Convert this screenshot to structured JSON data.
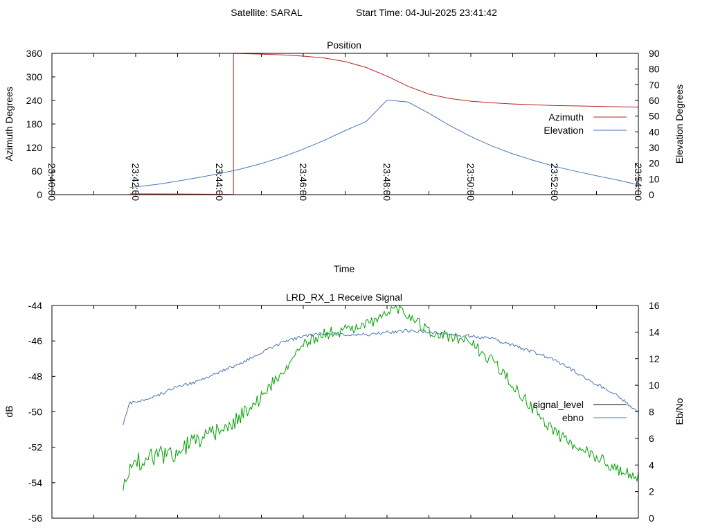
{
  "header": {
    "satellite_label": "Satellite: SARAL",
    "start_time_label": "Start Time: 04-Jul-2025 23:41:42"
  },
  "chart_data": [
    {
      "type": "line",
      "title": "Position",
      "xlabel": "Time",
      "ylabel": "Azimuth Degrees",
      "y2label": "Elevation Degrees",
      "xlim": [
        "23:40:00",
        "23:54:00"
      ],
      "x_ticks": [
        "23:40:00",
        "23:42:00",
        "23:44:00",
        "23:46:00",
        "23:48:00",
        "23:50:00",
        "23:52:00",
        "23:54:00"
      ],
      "ylim": [
        0,
        360
      ],
      "y_ticks": [
        "0",
        "60",
        "120",
        "180",
        "240",
        "300",
        "360"
      ],
      "y2lim": [
        0,
        90
      ],
      "y2_ticks": [
        "0",
        "10",
        "20",
        "30",
        "40",
        "50",
        "60",
        "70",
        "80",
        "90"
      ],
      "legend_position": "right",
      "grid": false,
      "series": [
        {
          "name": "Azimuth",
          "axis": "left",
          "color": "#b22222",
          "x": [
            "23:41:52",
            "23:42:30",
            "23:43:00",
            "23:43:30",
            "23:44:00",
            "23:44:20",
            "23:44:20",
            "23:44:30",
            "23:45:00",
            "23:45:30",
            "23:46:00",
            "23:46:30",
            "23:47:00",
            "23:47:30",
            "23:48:00",
            "23:48:30",
            "23:49:00",
            "23:49:30",
            "23:50:00",
            "23:50:30",
            "23:51:00",
            "23:51:30",
            "23:52:00",
            "23:52:30",
            "23:53:00",
            "23:53:30",
            "23:54:00"
          ],
          "values": [
            2,
            1.8,
            1.5,
            1.2,
            0.8,
            0.3,
            359.8,
            359.5,
            358,
            356,
            353,
            348,
            339,
            324,
            302,
            276,
            256,
            245,
            238,
            234,
            231,
            229,
            227,
            226,
            225,
            224,
            223
          ]
        },
        {
          "name": "Elevation",
          "axis": "right",
          "color": "#4a74b4",
          "x": [
            "23:41:52",
            "23:42:30",
            "23:43:00",
            "23:43:30",
            "23:44:00",
            "23:44:30",
            "23:45:00",
            "23:45:30",
            "23:46:00",
            "23:46:30",
            "23:47:00",
            "23:47:30",
            "23:48:00",
            "23:48:30",
            "23:49:00",
            "23:49:30",
            "23:50:00",
            "23:50:30",
            "23:51:00",
            "23:51:30",
            "23:52:00",
            "23:52:30",
            "23:53:00",
            "23:53:30",
            "23:54:00"
          ],
          "values": [
            4.5,
            6.5,
            8.6,
            10.9,
            13.4,
            16.3,
            19.8,
            24,
            29,
            34.6,
            40.8,
            46.6,
            60.2,
            59,
            51.8,
            44,
            37,
            31,
            26,
            21.8,
            18,
            14.9,
            12,
            9.3,
            6.2
          ]
        }
      ]
    },
    {
      "type": "line",
      "title": "LRD_RX_1 Receive Signal",
      "xlabel": "",
      "ylabel": "dB",
      "y2label": "Eb/No",
      "xlim": [
        "23:40:00",
        "23:54:00"
      ],
      "ylim": [
        -56,
        -44
      ],
      "y_ticks": [
        "-56",
        "-54",
        "-52",
        "-50",
        "-48",
        "-46",
        "-44"
      ],
      "y2lim": [
        0,
        16
      ],
      "y2_ticks": [
        "0",
        "2",
        "4",
        "6",
        "8",
        "10",
        "12",
        "14",
        "16"
      ],
      "legend_position": "right",
      "grid": false,
      "series": [
        {
          "name": "signal_level",
          "axis": "left",
          "color": "#000000",
          "x": [],
          "values": []
        },
        {
          "name": "ebno",
          "axis": "right",
          "color": "#4a74b4",
          "x": [
            "23:41:42",
            "23:41:50",
            "23:42:30",
            "23:43:00",
            "23:43:30",
            "23:44:00",
            "23:44:30",
            "23:45:00",
            "23:45:30",
            "23:46:00",
            "23:46:30",
            "23:47:00",
            "23:47:30",
            "23:48:00",
            "23:48:30",
            "23:49:00",
            "23:49:30",
            "23:50:00",
            "23:50:30",
            "23:51:00",
            "23:51:30",
            "23:52:00",
            "23:52:30",
            "23:53:00",
            "23:53:30",
            "23:54:00"
          ],
          "values": [
            7.0,
            8.6,
            9.2,
            9.9,
            10.3,
            11.0,
            11.6,
            12.5,
            13.2,
            13.7,
            13.9,
            13.8,
            13.8,
            14.0,
            14.1,
            14.0,
            13.8,
            13.7,
            13.5,
            13.0,
            12.5,
            11.9,
            11.0,
            10.1,
            9.2,
            8.0
          ]
        },
        {
          "name": "",
          "axis": "right",
          "color": "#00a000",
          "x": [
            "23:41:42",
            "23:41:52",
            "23:42:00",
            "23:42:30",
            "23:43:00",
            "23:43:30",
            "23:44:00",
            "23:44:30",
            "23:45:00",
            "23:45:30",
            "23:46:00",
            "23:46:30",
            "23:47:00",
            "23:47:30",
            "23:48:00",
            "23:48:10",
            "23:48:30",
            "23:49:00",
            "23:49:30",
            "23:50:00",
            "23:50:30",
            "23:51:00",
            "23:51:30",
            "23:52:00",
            "23:52:30",
            "23:53:00",
            "23:53:30",
            "23:54:00"
          ],
          "values": [
            2.0,
            3.6,
            4.2,
            4.6,
            5.1,
            5.9,
            6.5,
            7.6,
            9.1,
            11.1,
            13.1,
            13.9,
            14.1,
            14.6,
            15.3,
            16.0,
            15.4,
            14.0,
            13.6,
            13.1,
            11.9,
            10.1,
            8.1,
            6.4,
            5.4,
            4.6,
            3.6,
            3.1
          ]
        }
      ]
    }
  ]
}
